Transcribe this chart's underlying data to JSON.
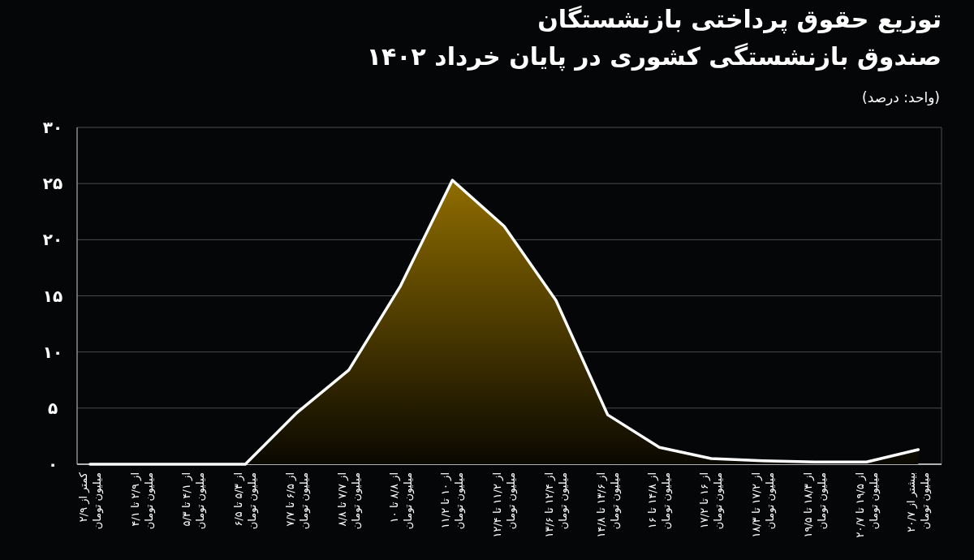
{
  "chart_data": {
    "type": "area",
    "title": "توزیع حقوق پرداختی بازنشستگان\nصندوق بازنشستگی کشوری در پایان خرداد ۱۴۰۲",
    "annotations": [
      "(واحد: درصد)"
    ],
    "categories": [
      "کمتر از ۲/۹\nمیلیون تومان",
      "از ۲/۹ تا ۴/۱\nمیلیون تومان",
      "از ۴/۱ تا ۵/۳\nمیلیون تومان",
      "از ۵/۳ تا ۶/۵\nمیلیون تومان",
      "از ۶/۵ تا ۷/۷\nمیلیون تومان",
      "از ۷/۷ تا ۸/۸\nمیلیون تومان",
      "از ۸/۸ تا ۱۰\nمیلیون تومان",
      "از ۱۰ تا ۱۱/۲\nمیلیون تومان",
      "از ۱۱/۲ تا ۱۲/۴\nمیلیون تومان",
      "از ۱۲/۴ تا ۱۳/۶\nمیلیون تومان",
      "از ۱۳/۶ تا ۱۴/۸\nمیلیون تومان",
      "از ۱۴/۸ تا ۱۶\nمیلیون تومان",
      "از ۱۶ تا ۱۷/۲\nمیلیون تومان",
      "از ۱۷/۲ تا ۱۸/۳\nمیلیون تومان",
      "از ۱۸/۳ تا ۱۹/۵\nمیلیون تومان",
      "از ۱۹/۵ تا ۲۰/۷\nمیلیون تومان",
      "بیشتر از ۲۰/۷\nمیلیون تومان"
    ],
    "series": [
      {
        "color": "#ffffff",
        "values": [
          0,
          0,
          0,
          0,
          4.6,
          8.4,
          15.9,
          25.3,
          21.2,
          14.6,
          4.4,
          1.5,
          0.5,
          0.3,
          0.2,
          0.2,
          1.3
        ]
      }
    ],
    "ylim": [
      0,
      30
    ],
    "yticks": [
      {
        "value": 0,
        "label": "۰"
      },
      {
        "value": 5,
        "label": "۵"
      },
      {
        "value": 10,
        "label": "۱۰"
      },
      {
        "value": 15,
        "label": "۱۵"
      },
      {
        "value": 20,
        "label": "۲۰"
      },
      {
        "value": 25,
        "label": "۲۵"
      },
      {
        "value": 30,
        "label": "۳۰"
      }
    ],
    "grid": "y",
    "marker": "none",
    "line_style": "solid"
  }
}
